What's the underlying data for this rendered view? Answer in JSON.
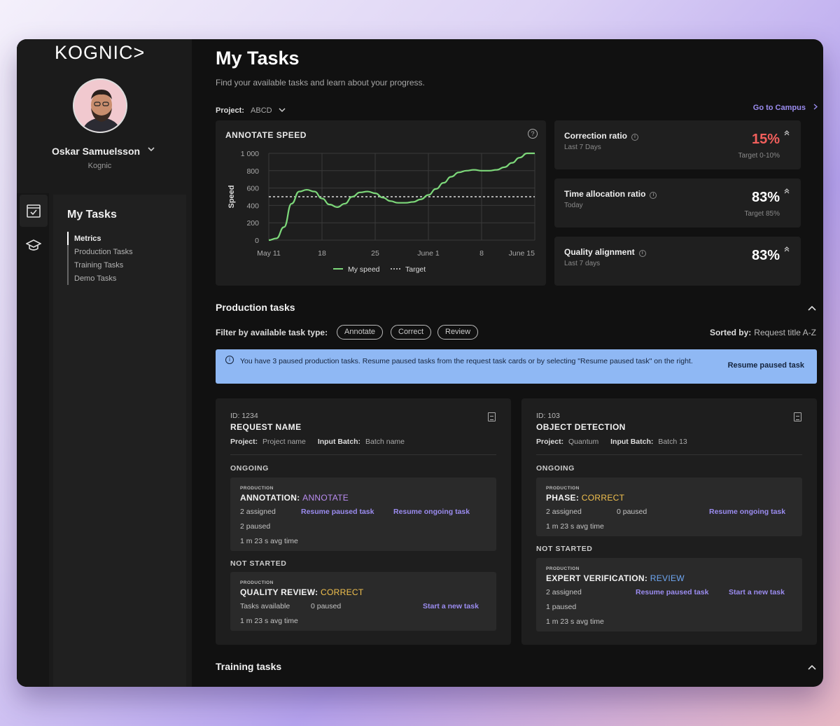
{
  "sidebar": {
    "logo": "KOGNIC>",
    "user_name": "Oskar Samuelsson",
    "user_org": "Kognic",
    "nav_title": "My Tasks",
    "nav_items": [
      "Metrics",
      "Production Tasks",
      "Training Tasks",
      "Demo Tasks"
    ],
    "rail_icons": [
      "task-check-icon",
      "graduation-cap-icon"
    ]
  },
  "header": {
    "title": "My Tasks",
    "subtitle": "Find your available tasks and learn about your progress.",
    "project_label": "Project:",
    "project_value": "ABCD",
    "campus_link": "Go to Campus"
  },
  "chart_data": {
    "type": "line",
    "title": "ANNOTATE SPEED",
    "ylabel": "Speed",
    "xlabel": "",
    "ylim": [
      0,
      1000
    ],
    "y_ticks": [
      "0",
      "200",
      "400",
      "600",
      "800",
      "1 000"
    ],
    "x_ticks": [
      "May 11",
      "18",
      "25",
      "June 1",
      "8",
      "June 15"
    ],
    "x_tick_days": [
      11,
      18,
      25,
      32,
      39,
      46
    ],
    "series": [
      {
        "name": "My speed",
        "color": "#7dd87a",
        "x": [
          11,
          12,
          13,
          14,
          15,
          16,
          17,
          18,
          19,
          20,
          21,
          22,
          23,
          24,
          25,
          26,
          27,
          28,
          29,
          30,
          31,
          32,
          33,
          34,
          35,
          36,
          37,
          38,
          39,
          40,
          41,
          42,
          43,
          44,
          45,
          46
        ],
        "values": [
          0,
          20,
          150,
          420,
          560,
          580,
          560,
          480,
          410,
          380,
          420,
          500,
          550,
          560,
          540,
          490,
          450,
          430,
          430,
          440,
          470,
          520,
          590,
          660,
          730,
          780,
          800,
          810,
          800,
          800,
          810,
          840,
          890,
          950,
          1000,
          1000
        ]
      },
      {
        "name": "Target",
        "color": "#dddddd",
        "dashed": true,
        "x": [
          11,
          46
        ],
        "values": [
          500,
          500
        ]
      }
    ],
    "legend": [
      "My speed",
      "Target"
    ],
    "legend_position": "bottom"
  },
  "metrics": [
    {
      "title": "Correction ratio",
      "period": "Last 7 Days",
      "value": "15%",
      "target": "Target 0-10%",
      "color": "#f25f5c"
    },
    {
      "title": "Time allocation ratio",
      "period": "Today",
      "value": "83%",
      "target": "Target 85%",
      "color": "#ffffff"
    },
    {
      "title": "Quality alignment",
      "period": "Last 7 days",
      "value": "83%",
      "target": "",
      "color": "#ffffff"
    }
  ],
  "production": {
    "title": "Production tasks",
    "filter_label": "Filter by available task type:",
    "filters": [
      "Annotate",
      "Correct",
      "Review"
    ],
    "sorted_label": "Sorted by:",
    "sorted_value": "Request title A-Z",
    "banner_text": "You have 3 paused production tasks. Resume paused tasks from the request task cards or by selecting \"Resume paused task\" on the right.",
    "banner_button": "Resume paused task"
  },
  "cards": [
    {
      "id": "ID: 1234",
      "name": "REQUEST NAME",
      "project_label": "Project:",
      "project": "Project name",
      "batch_label": "Input Batch:",
      "batch": "Batch name",
      "ongoing_label": "ONGOING",
      "ongoing": {
        "kind": "PRODUCTION",
        "title": "ANNOTATION:",
        "phase": "ANNOTATE",
        "line1": "2 assigned",
        "line2": "2 paused",
        "line3": "1 m 23 s avg time",
        "link1": "Resume paused task",
        "link2": "Resume ongoing task"
      },
      "not_started_label": "NOT STARTED",
      "not_started": {
        "kind": "PRODUCTION",
        "title": "QUALITY REVIEW:",
        "phase": "CORRECT",
        "line1": "Tasks available",
        "line1b": "0 paused",
        "line2": "1 m 23 s avg time",
        "link": "Start a new task"
      }
    },
    {
      "id": "ID: 103",
      "name": "OBJECT DETECTION",
      "project_label": "Project:",
      "project": "Quantum",
      "batch_label": "Input Batch:",
      "batch": "Batch 13",
      "ongoing_label": "ONGOING",
      "ongoing": {
        "kind": "PRODUCTION",
        "title": "PHASE:",
        "phase": "CORRECT",
        "line1": "2 assigned",
        "line1b": "0 paused",
        "line2": "1 m 23 s avg time",
        "link": "Resume ongoing task"
      },
      "not_started_label": "NOT STARTED",
      "not_started": {
        "kind": "PRODUCTION",
        "title": "EXPERT VERIFICATION:",
        "phase": "REVIEW",
        "line1": "2 assigned",
        "line2": "1 paused",
        "line3": "1 m 23 s avg time",
        "link1": "Resume paused task",
        "link2": "Start a new task"
      }
    }
  ],
  "training": {
    "title": "Training tasks"
  }
}
